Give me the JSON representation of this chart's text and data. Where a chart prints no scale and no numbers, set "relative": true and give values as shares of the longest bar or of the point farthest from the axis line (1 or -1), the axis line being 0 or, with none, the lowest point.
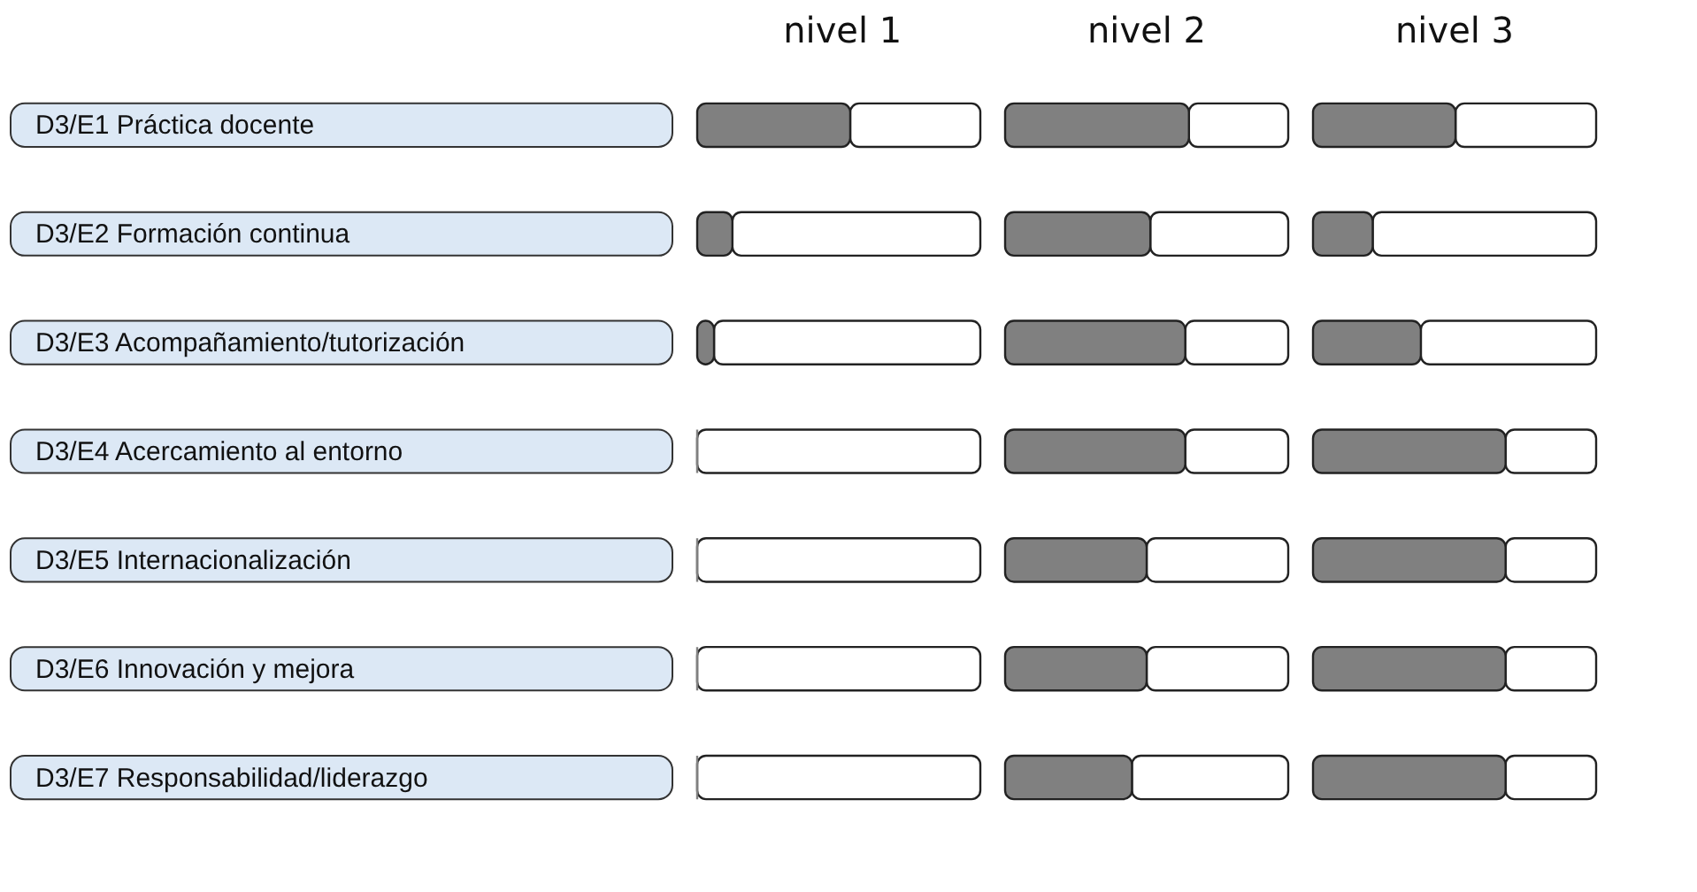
{
  "chart_data": [
    {
      "type": "bar",
      "orientation": "horizontal",
      "relative": true,
      "title": "nivel 1",
      "color": "#808080",
      "categories": [
        "D3/E1 Práctica docente",
        "D3/E2 Formación continua",
        "D3/E3 Acompañamiento/tutorización",
        "D3/E4 Acercamiento al  entorno",
        "D3/E5 Internacionalización",
        "D3/E6 Innovación y mejora",
        "D3/E7 Responsabilidad/liderazgo"
      ],
      "values": [
        1,
        0.23,
        0.11,
        0,
        0,
        0,
        0
      ]
    },
    {
      "type": "bar",
      "orientation": "horizontal",
      "relative": true,
      "title": "nivel 2",
      "color": "#808080",
      "tick_labels": false,
      "values": [
        1,
        0.79,
        0.98,
        0.98,
        0.77,
        0.77,
        0.69
      ]
    },
    {
      "type": "bar",
      "orientation": "horizontal",
      "relative": true,
      "title": "nivel 3",
      "color": "#808080",
      "tick_labels": false,
      "values": [
        0.74,
        0.31,
        0.56,
        1,
        1,
        1,
        1
      ]
    }
  ]
}
